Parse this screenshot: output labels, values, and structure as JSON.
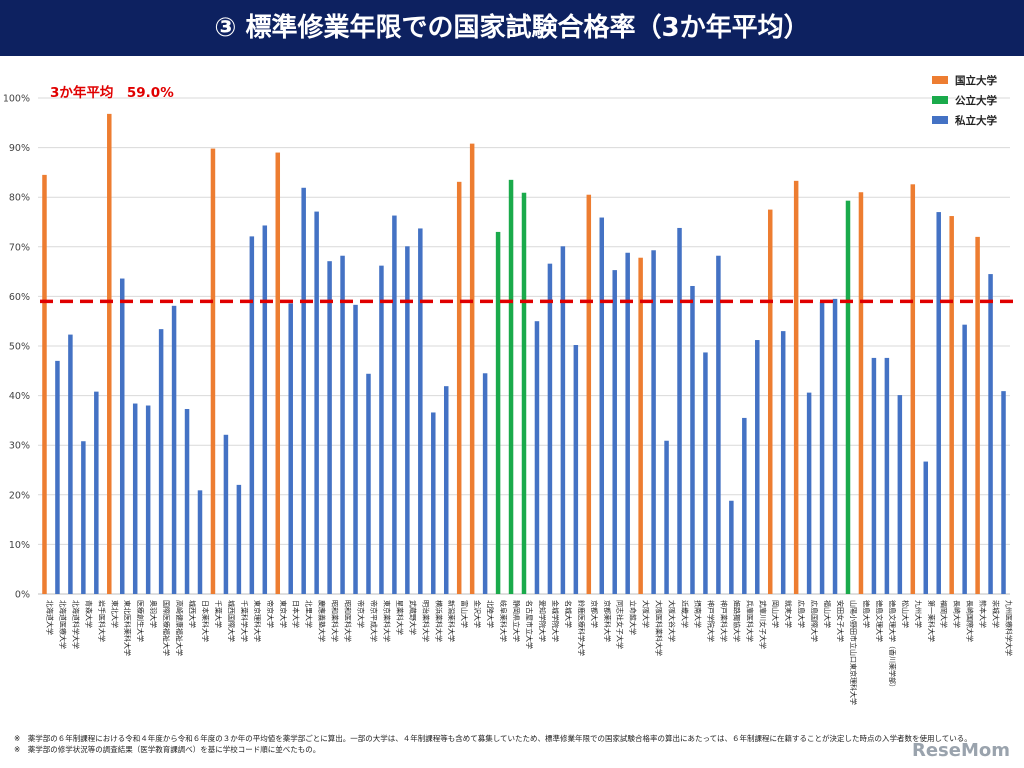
{
  "header": {
    "title": "③ 標準修業年限での国家試験合格率（3か年平均）"
  },
  "average_label": "3か年平均　59.0%",
  "footnotes": [
    "※　薬学部の６年制課程における令和４年度から令和６年度の３か年の平均値を薬学部ごとに算出。一部の大学は、４年制課程等も含めて募集していたため、標準修業年限での国家試験合格率の算出にあたっては、６年制課程に在籍することが決定した時点の入学者数を使用している。",
    "※　薬学部の修学状況等の調査結果（医学教育課調べ）を基に学校コード順に並べたもの。"
  ],
  "brand": "ReseMom",
  "colors": {
    "national": "#ed7d31",
    "public": "#1aaa4b",
    "private": "#4472c4",
    "average": "#e00000",
    "title_bg": "#0d2160"
  },
  "chart_data": {
    "type": "bar",
    "title": "③ 標準修業年限での国家試験合格率（3か年平均）",
    "ylim": [
      0,
      100
    ],
    "yticks": [
      "0%",
      "10%",
      "20%",
      "30%",
      "40%",
      "50%",
      "60%",
      "70%",
      "80%",
      "90%",
      "100%"
    ],
    "average": 59.0,
    "grid": true,
    "legend_position": "top-right",
    "legend": [
      {
        "key": "national",
        "label": "国立大学"
      },
      {
        "key": "public",
        "label": "公立大学"
      },
      {
        "key": "private",
        "label": "私立大学"
      }
    ],
    "bars": [
      {
        "label": "北海道大学",
        "value": 84.5,
        "type": "national"
      },
      {
        "label": "北海道医療大学",
        "value": 47.0,
        "type": "private"
      },
      {
        "label": "北海道科学大学",
        "value": 52.3,
        "type": "private"
      },
      {
        "label": "青森大学",
        "value": 30.8,
        "type": "private"
      },
      {
        "label": "岩手医科大学",
        "value": 40.8,
        "type": "private"
      },
      {
        "label": "東北大学",
        "value": 96.8,
        "type": "national"
      },
      {
        "label": "東北医科薬科大学",
        "value": 63.6,
        "type": "private"
      },
      {
        "label": "医療創生大学",
        "value": 38.4,
        "type": "private"
      },
      {
        "label": "奥羽大学",
        "value": 38.0,
        "type": "private"
      },
      {
        "label": "国際医療福祉大学",
        "value": 53.4,
        "type": "private"
      },
      {
        "label": "高崎健康福祉大学",
        "value": 58.1,
        "type": "private"
      },
      {
        "label": "城西大学",
        "value": 37.3,
        "type": "private"
      },
      {
        "label": "日本薬科大学",
        "value": 20.9,
        "type": "private"
      },
      {
        "label": "千葉大学",
        "value": 89.8,
        "type": "national"
      },
      {
        "label": "城西国際大学",
        "value": 32.1,
        "type": "private"
      },
      {
        "label": "千葉科学大学",
        "value": 22.0,
        "type": "private"
      },
      {
        "label": "東京理科大学",
        "value": 72.1,
        "type": "private"
      },
      {
        "label": "帝京大学",
        "value": 74.3,
        "type": "private"
      },
      {
        "label": "東京大学",
        "value": 89.0,
        "type": "national"
      },
      {
        "label": "日本大学",
        "value": 58.6,
        "type": "private"
      },
      {
        "label": "北里大学",
        "value": 81.9,
        "type": "private"
      },
      {
        "label": "慶應義塾大学",
        "value": 77.1,
        "type": "private"
      },
      {
        "label": "昭和薬科大学",
        "value": 67.1,
        "type": "private"
      },
      {
        "label": "昭和医科大学",
        "value": 68.2,
        "type": "private"
      },
      {
        "label": "帝京大学",
        "value": 58.3,
        "type": "private"
      },
      {
        "label": "帝京平成大学",
        "value": 44.4,
        "type": "private"
      },
      {
        "label": "東京薬科大学",
        "value": 66.2,
        "type": "private"
      },
      {
        "label": "星薬科大学",
        "value": 76.3,
        "type": "private"
      },
      {
        "label": "武蔵野大学",
        "value": 70.1,
        "type": "private"
      },
      {
        "label": "明治薬科大学",
        "value": 73.7,
        "type": "private"
      },
      {
        "label": "横浜薬科大学",
        "value": 36.6,
        "type": "private"
      },
      {
        "label": "新潟薬科大学",
        "value": 41.9,
        "type": "private"
      },
      {
        "label": "富山大学",
        "value": 83.1,
        "type": "national"
      },
      {
        "label": "金沢大学",
        "value": 90.8,
        "type": "national"
      },
      {
        "label": "北陸大学",
        "value": 44.5,
        "type": "private"
      },
      {
        "label": "岐阜薬科大学",
        "value": 73.0,
        "type": "public"
      },
      {
        "label": "静岡県立大学",
        "value": 83.5,
        "type": "public"
      },
      {
        "label": "名古屋市立大学",
        "value": 80.9,
        "type": "public"
      },
      {
        "label": "愛知学院大学",
        "value": 55.0,
        "type": "private"
      },
      {
        "label": "金城学院大学",
        "value": 66.6,
        "type": "private"
      },
      {
        "label": "名城大学",
        "value": 70.1,
        "type": "private"
      },
      {
        "label": "鈴鹿医療科学大学",
        "value": 50.2,
        "type": "private"
      },
      {
        "label": "京都大学",
        "value": 80.5,
        "type": "national"
      },
      {
        "label": "京都薬科大学",
        "value": 75.9,
        "type": "private"
      },
      {
        "label": "同志社女子大学",
        "value": 65.3,
        "type": "private"
      },
      {
        "label": "立命館大学",
        "value": 68.8,
        "type": "private"
      },
      {
        "label": "大阪大学",
        "value": 67.8,
        "type": "national"
      },
      {
        "label": "大阪医科薬科大学",
        "value": 69.3,
        "type": "private"
      },
      {
        "label": "大阪大谷大学",
        "value": 30.9,
        "type": "private"
      },
      {
        "label": "近畿大学",
        "value": 73.8,
        "type": "private"
      },
      {
        "label": "摂南大学",
        "value": 62.1,
        "type": "private"
      },
      {
        "label": "神戸学院大学",
        "value": 48.7,
        "type": "private"
      },
      {
        "label": "神戸薬科大学",
        "value": 68.2,
        "type": "private"
      },
      {
        "label": "姫路獨協大学",
        "value": 18.8,
        "type": "private"
      },
      {
        "label": "兵庫医科大学",
        "value": 35.5,
        "type": "private"
      },
      {
        "label": "武庫川女子大学",
        "value": 51.2,
        "type": "private"
      },
      {
        "label": "岡山大学",
        "value": 77.5,
        "type": "national"
      },
      {
        "label": "就実大学",
        "value": 53.0,
        "type": "private"
      },
      {
        "label": "広島大学",
        "value": 83.3,
        "type": "national"
      },
      {
        "label": "広島国際大学",
        "value": 40.6,
        "type": "private"
      },
      {
        "label": "福山大学",
        "value": 58.9,
        "type": "private"
      },
      {
        "label": "安田女子大学",
        "value": 59.5,
        "type": "private"
      },
      {
        "label": "山陽小野田市立山口東京理科大学",
        "value": 79.3,
        "type": "public"
      },
      {
        "label": "徳島大学",
        "value": 81.0,
        "type": "national"
      },
      {
        "label": "徳島文理大学",
        "value": 47.6,
        "type": "private"
      },
      {
        "label": "徳島文理大学（香川薬学部）",
        "value": 47.6,
        "type": "private"
      },
      {
        "label": "松山大学",
        "value": 40.1,
        "type": "private"
      },
      {
        "label": "九州大学",
        "value": 82.6,
        "type": "national"
      },
      {
        "label": "第一薬科大学",
        "value": 26.7,
        "type": "private"
      },
      {
        "label": "福岡大学",
        "value": 77.0,
        "type": "private"
      },
      {
        "label": "長崎大学",
        "value": 76.2,
        "type": "national"
      },
      {
        "label": "長崎国際大学",
        "value": 54.3,
        "type": "private"
      },
      {
        "label": "熊本大学",
        "value": 72.0,
        "type": "national"
      },
      {
        "label": "崇城大学",
        "value": 64.5,
        "type": "private"
      },
      {
        "label": "九州医療科学大学",
        "value": 40.9,
        "type": "private"
      }
    ]
  }
}
